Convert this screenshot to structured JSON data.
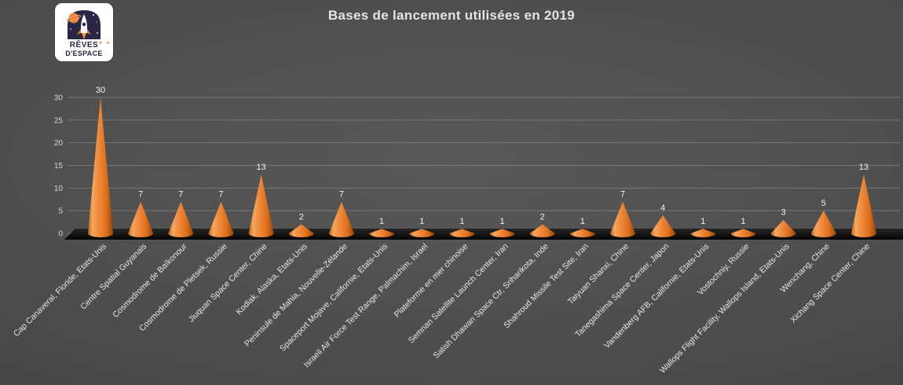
{
  "title": "Bases de lancement utilisées en 2019",
  "logo": {
    "line1": "RÊVES",
    "line2": "D'ESPACE",
    "stars": "✶ ✶"
  },
  "colors": {
    "cone_accent": "#ED7D31",
    "background": "#4b4b4b",
    "floor": "#0d0d0d",
    "text_light": "#e8e8e8"
  },
  "chart_data": {
    "type": "bar",
    "subtype": "3d-cone",
    "title": "Bases de lancement utilisées en 2019",
    "categories": [
      "Cap Canaveral, Floride, Etats-Unis",
      "Centre Spatial Guyanais",
      "Cosmodrome de Baïkonour",
      "Cosmodrome de Pletsek, Russie",
      "Jiuquan Space Center, Chine",
      "Kodiak, Alaska, Etats-Unis",
      "Peninsule de Mahia, Nouvelle-Zélande",
      "Spaceport Mojave, Californie, Etats-Unis",
      "Israeli Air Force Test Range, Palmachim, Israel",
      "Plateforme en mer chinoise",
      "Semnan Satellite Launch Center, Iran",
      "Satish Dhawan Space Ctr, Sriharikota, Inde",
      "Shahroud Missile Test Site, Iran",
      "Taiyuan Shanxi, Chine",
      "Tanegashima Space Center, Japon",
      "Vandenberg AFB, Californie, Etats-Unis",
      "Vostochniy, Russie",
      "Wallops Flight Facility, Wallops Island, Etats-Unis",
      "Wenchang, Chine",
      "Xichang Space Center, Chine"
    ],
    "values": [
      30,
      7,
      7,
      7,
      13,
      2,
      7,
      1,
      1,
      1,
      1,
      2,
      1,
      7,
      4,
      1,
      1,
      3,
      5,
      13
    ],
    "xlabel": "",
    "ylabel": "",
    "ylim": [
      0,
      30
    ],
    "yticks": [
      0,
      5,
      10,
      15,
      20,
      25,
      30
    ],
    "grid": true,
    "legend": "none"
  }
}
